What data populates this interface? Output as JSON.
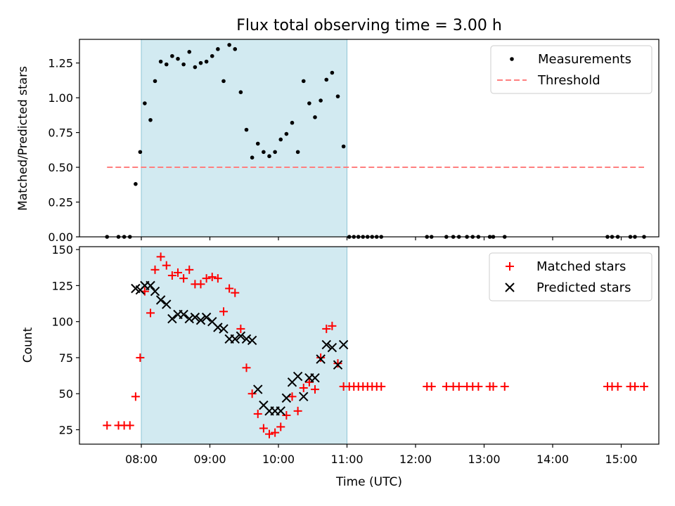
{
  "chart_data": {
    "title": "Flux total observing time = 3.00 h",
    "shaded_window": [
      "08:00",
      "11:00"
    ],
    "shade_color": "#add8e6",
    "panels": [
      {
        "type": "scatter",
        "ylabel": "Matched/Predicted stars",
        "ylim": [
          0,
          1.42
        ],
        "yticks": [
          0.0,
          0.25,
          0.5,
          0.75,
          1.0,
          1.25
        ],
        "ytick_labels": [
          "0.00",
          "0.25",
          "0.50",
          "0.75",
          "1.00",
          "1.25"
        ],
        "legend_placement": "top-right",
        "series": [
          {
            "name": "Measurements",
            "marker": "dot",
            "color": "#000000",
            "x": [
              "07:30",
              "07:40",
              "07:45",
              "07:50",
              "07:55",
              "07:59",
              "08:03",
              "08:08",
              "08:12",
              "08:17",
              "08:22",
              "08:27",
              "08:32",
              "08:37",
              "08:42",
              "08:47",
              "08:52",
              "08:57",
              "09:02",
              "09:07",
              "09:12",
              "09:17",
              "09:22",
              "09:27",
              "09:32",
              "09:37",
              "09:42",
              "09:47",
              "09:52",
              "09:57",
              "10:02",
              "10:07",
              "10:12",
              "10:17",
              "10:22",
              "10:27",
              "10:32",
              "10:37",
              "10:42",
              "10:47",
              "10:52",
              "10:57",
              "11:02",
              "11:06",
              "11:10",
              "11:14",
              "11:18",
              "11:22",
              "11:26",
              "11:30",
              "12:10",
              "12:14",
              "12:27",
              "12:33",
              "12:38",
              "12:45",
              "12:50",
              "12:55",
              "13:05",
              "13:08",
              "13:18",
              "14:48",
              "14:52",
              "14:57",
              "15:08",
              "15:12",
              "15:20"
            ],
            "y": [
              0,
              0,
              0,
              0,
              0.38,
              0.61,
              0.96,
              0.84,
              1.12,
              1.26,
              1.24,
              1.3,
              1.28,
              1.24,
              1.33,
              1.22,
              1.25,
              1.26,
              1.3,
              1.35,
              1.12,
              1.38,
              1.35,
              1.04,
              0.77,
              0.57,
              0.67,
              0.61,
              0.58,
              0.61,
              0.7,
              0.74,
              0.82,
              0.61,
              1.12,
              0.96,
              0.86,
              0.98,
              1.13,
              1.18,
              1.01,
              0.65,
              0,
              0,
              0,
              0,
              0,
              0,
              0,
              0,
              0,
              0,
              0,
              0,
              0,
              0,
              0,
              0,
              0,
              0,
              0,
              0,
              0,
              0,
              0,
              0,
              0
            ]
          },
          {
            "name": "Threshold",
            "marker": "dashed-line",
            "color": "#ff7f7f",
            "x": [
              "07:30",
              "15:20"
            ],
            "y": [
              0.5,
              0.5
            ]
          }
        ]
      },
      {
        "type": "scatter",
        "ylabel": "Count",
        "xlabel": "Time (UTC)",
        "ylim": [
          15,
          152
        ],
        "yticks": [
          25,
          50,
          75,
          100,
          125,
          150
        ],
        "ytick_labels": [
          "25",
          "50",
          "75",
          "100",
          "125",
          "150"
        ],
        "xtick_labels": [
          "08:00",
          "09:00",
          "10:00",
          "11:00",
          "12:00",
          "13:00",
          "14:00",
          "15:00"
        ],
        "legend_placement": "top-right",
        "series": [
          {
            "name": "Matched stars",
            "marker": "plus",
            "color": "#ff0000",
            "x": [
              "07:30",
              "07:40",
              "07:45",
              "07:50",
              "07:55",
              "07:59",
              "08:03",
              "08:08",
              "08:12",
              "08:17",
              "08:22",
              "08:27",
              "08:32",
              "08:37",
              "08:42",
              "08:47",
              "08:52",
              "08:57",
              "09:02",
              "09:07",
              "09:12",
              "09:17",
              "09:22",
              "09:27",
              "09:32",
              "09:37",
              "09:42",
              "09:47",
              "09:52",
              "09:57",
              "10:02",
              "10:07",
              "10:12",
              "10:17",
              "10:22",
              "10:27",
              "10:32",
              "10:37",
              "10:42",
              "10:47",
              "10:52",
              "10:57",
              "11:02",
              "11:06",
              "11:10",
              "11:14",
              "11:18",
              "11:22",
              "11:26",
              "11:30",
              "12:10",
              "12:14",
              "12:27",
              "12:33",
              "12:38",
              "12:45",
              "12:50",
              "12:55",
              "13:05",
              "13:08",
              "13:18",
              "14:48",
              "14:52",
              "14:57",
              "15:08",
              "15:12",
              "15:20"
            ],
            "y": [
              28,
              28,
              28,
              28,
              48,
              75,
              121,
              106,
              136,
              145,
              139,
              132,
              134,
              130,
              136,
              126,
              126,
              130,
              131,
              130,
              107,
              123,
              120,
              95,
              68,
              50,
              36,
              26,
              22,
              23,
              27,
              35,
              48,
              38,
              54,
              58,
              53,
              75,
              95,
              97,
              71,
              55,
              55,
              55,
              55,
              55,
              55,
              55,
              55,
              55,
              55,
              55,
              55,
              55,
              55,
              55,
              55,
              55,
              55,
              55,
              55,
              55,
              55,
              55,
              55,
              55,
              55
            ]
          },
          {
            "name": "Predicted stars",
            "marker": "x",
            "color": "#000000",
            "x": [
              "07:55",
              "07:59",
              "08:03",
              "08:08",
              "08:12",
              "08:17",
              "08:22",
              "08:27",
              "08:32",
              "08:37",
              "08:42",
              "08:47",
              "08:52",
              "08:57",
              "09:02",
              "09:07",
              "09:12",
              "09:17",
              "09:22",
              "09:27",
              "09:32",
              "09:37",
              "09:42",
              "09:47",
              "09:52",
              "09:57",
              "10:02",
              "10:07",
              "10:12",
              "10:17",
              "10:22",
              "10:27",
              "10:32",
              "10:37",
              "10:42",
              "10:47",
              "10:52",
              "10:57"
            ],
            "y": [
              123,
              122,
              125,
              125,
              121,
              115,
              112,
              102,
              105,
              105,
              102,
              103,
              101,
              103,
              100,
              96,
              95,
              88,
              88,
              90,
              88,
              87,
              53,
              42,
              38,
              38,
              38,
              47,
              58,
              62,
              48,
              61,
              61,
              74,
              84,
              82,
              70,
              84
            ]
          }
        ]
      }
    ]
  }
}
